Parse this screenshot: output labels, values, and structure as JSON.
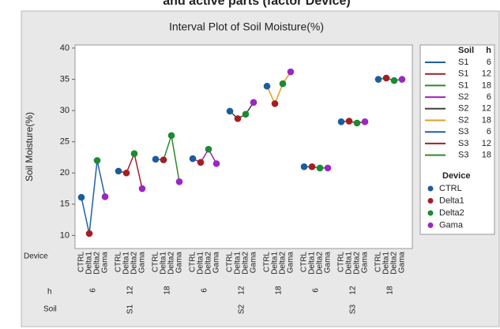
{
  "chart_data": {
    "type": "interval",
    "caption": "and active parts (factor Device)",
    "title": "Interval Plot of Soil Moisture(%)",
    "y_label": "Soil Moisture(%)",
    "x_row_labels": [
      "Device",
      "h",
      "Soil"
    ],
    "legend_headers": [
      "Soil",
      "h"
    ],
    "device_legend_title": "Device",
    "categories": [
      "CTRL",
      "Delta1",
      "Delta2",
      "Gama"
    ],
    "device_colors": [
      "#1b5d9c",
      "#a51d24",
      "#1c8a30",
      "#9b27c2"
    ],
    "series": [
      {
        "soil": "S1",
        "h": "6",
        "color": "#1f5fa8",
        "values": [
          16.1,
          10.3,
          22.0,
          16.2
        ]
      },
      {
        "soil": "S1",
        "h": "12",
        "color": "#a0202a",
        "values": [
          20.3,
          20.0,
          23.1,
          17.5
        ]
      },
      {
        "soil": "S1",
        "h": "18",
        "color": "#2a8a2a",
        "values": [
          22.2,
          22.1,
          26.0,
          18.6
        ]
      },
      {
        "soil": "S2",
        "h": "6",
        "color": "#a020c0",
        "values": [
          22.3,
          21.7,
          23.8,
          21.5
        ]
      },
      {
        "soil": "S2",
        "h": "12",
        "color": "#404040",
        "values": [
          29.9,
          28.7,
          29.4,
          31.3
        ]
      },
      {
        "soil": "S2",
        "h": "18",
        "color": "#e0a020",
        "values": [
          33.9,
          31.1,
          34.3,
          36.2
        ]
      },
      {
        "soil": "S3",
        "h": "6",
        "color": "#1f5fa8",
        "values": [
          21.0,
          21.0,
          20.8,
          20.8
        ]
      },
      {
        "soil": "S3",
        "h": "12",
        "color": "#a0202a",
        "values": [
          28.2,
          28.3,
          28.0,
          28.2
        ]
      },
      {
        "soil": "S3",
        "h": "18",
        "color": "#2a8a2a",
        "values": [
          35.0,
          35.2,
          34.8,
          35.0
        ]
      }
    ],
    "ylim": [
      7.9,
      40.5
    ],
    "yticks": [
      10,
      15,
      20,
      25,
      30,
      35,
      40
    ]
  }
}
